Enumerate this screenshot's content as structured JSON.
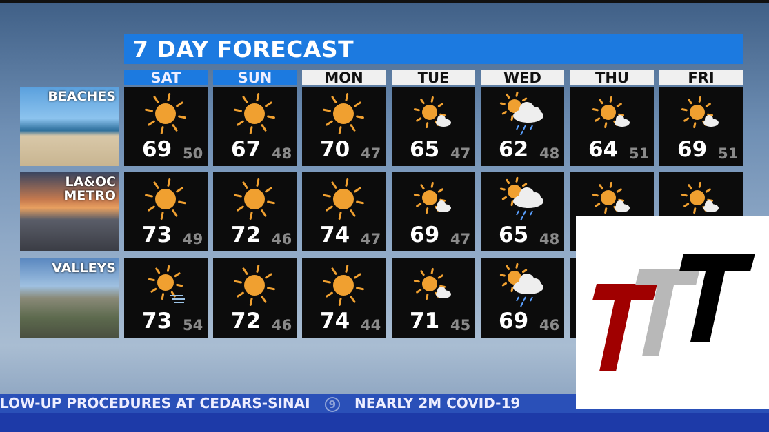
{
  "title": "7 DAY FORECAST",
  "days": [
    {
      "label": "SAT",
      "weekend": true
    },
    {
      "label": "SUN",
      "weekend": true
    },
    {
      "label": "MON",
      "weekend": false
    },
    {
      "label": "TUE",
      "weekend": false
    },
    {
      "label": "WED",
      "weekend": false
    },
    {
      "label": "THU",
      "weekend": false
    },
    {
      "label": "FRI",
      "weekend": false
    }
  ],
  "regions": [
    {
      "label": "BEACHES",
      "cells": [
        {
          "icon": "sun-icon",
          "hi": "69",
          "lo": "50"
        },
        {
          "icon": "sun-icon",
          "hi": "67",
          "lo": "48"
        },
        {
          "icon": "sun-icon",
          "hi": "70",
          "lo": "47"
        },
        {
          "icon": "mostly-sunny-icon",
          "hi": "65",
          "lo": "47"
        },
        {
          "icon": "rain-cloud-sun-icon",
          "hi": "62",
          "lo": "48"
        },
        {
          "icon": "mostly-sunny-icon",
          "hi": "64",
          "lo": "51"
        },
        {
          "icon": "mostly-sunny-icon",
          "hi": "69",
          "lo": "51"
        }
      ]
    },
    {
      "label": "LA&OC METRO",
      "cells": [
        {
          "icon": "sun-icon",
          "hi": "73",
          "lo": "49"
        },
        {
          "icon": "sun-icon",
          "hi": "72",
          "lo": "46"
        },
        {
          "icon": "sun-icon",
          "hi": "74",
          "lo": "47"
        },
        {
          "icon": "mostly-sunny-icon",
          "hi": "69",
          "lo": "47"
        },
        {
          "icon": "rain-cloud-sun-icon",
          "hi": "65",
          "lo": "48"
        },
        {
          "icon": "mostly-sunny-icon"
        },
        {
          "icon": "mostly-sunny-icon"
        }
      ]
    },
    {
      "label": "VALLEYS",
      "cells": [
        {
          "icon": "sun-wind-icon",
          "hi": "73",
          "lo": "54"
        },
        {
          "icon": "sun-icon",
          "hi": "72",
          "lo": "46"
        },
        {
          "icon": "sun-icon",
          "hi": "74",
          "lo": "44"
        },
        {
          "icon": "mostly-sunny-icon",
          "hi": "71",
          "lo": "45"
        },
        {
          "icon": "rain-cloud-sun-icon",
          "hi": "69",
          "lo": "46"
        },
        {
          "icon": "none"
        },
        {
          "icon": "none"
        }
      ]
    }
  ],
  "ticker": {
    "items": [
      "LOW-UP PROCEDURES AT CEDARS-SINAI",
      "9",
      "NEARLY 2M COVID-19"
    ]
  },
  "logo": {
    "text": "TTT"
  },
  "colors": {
    "accent": "#1c7ae0",
    "sun": "#f0a030",
    "ticker": "#2a50b8",
    "logo_red": "#a00000",
    "logo_gray": "#b8b8b8",
    "logo_black": "#000000"
  }
}
